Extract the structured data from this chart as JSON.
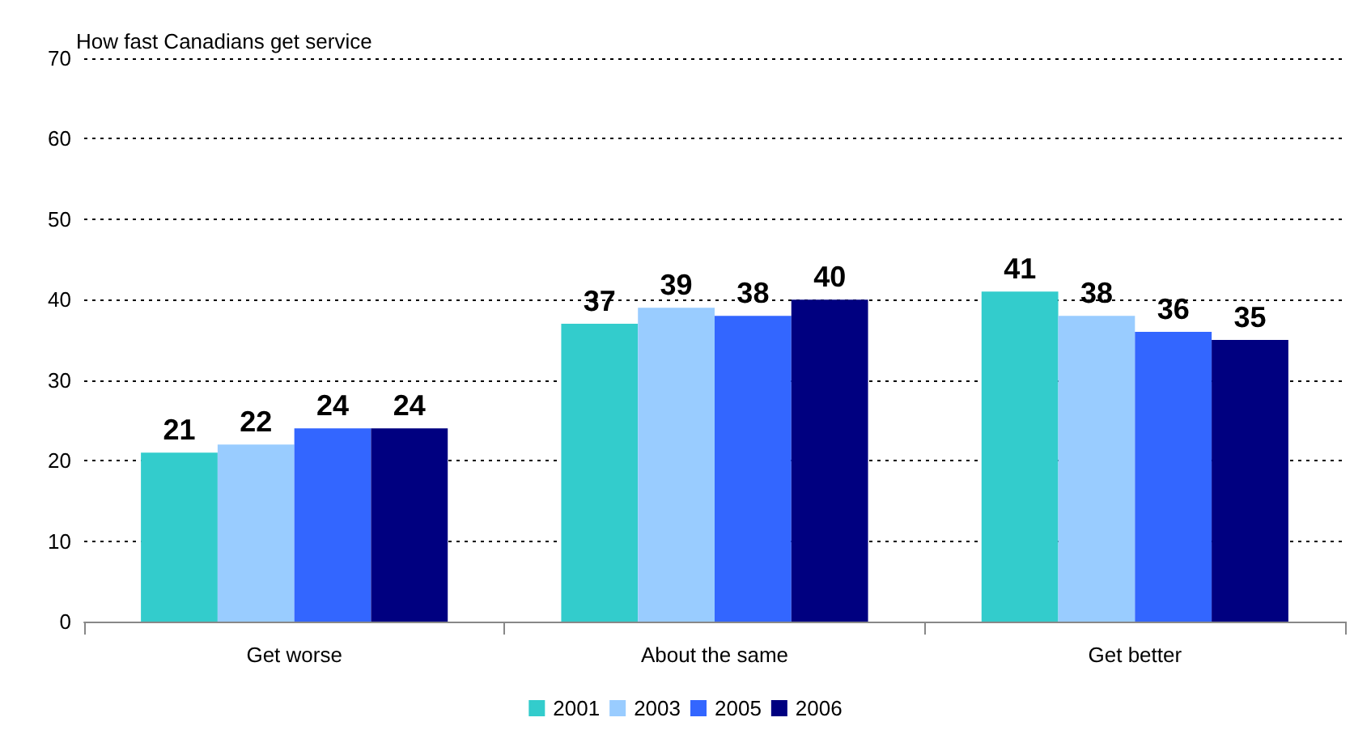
{
  "chart_data": {
    "type": "bar",
    "title": "How fast Canadians get service",
    "categories": [
      "Get worse",
      "About the same",
      "Get better"
    ],
    "series": [
      {
        "name": "2001",
        "color": "#33cccc",
        "values": [
          21,
          37,
          41
        ]
      },
      {
        "name": "2003",
        "color": "#99ccff",
        "values": [
          22,
          39,
          38
        ]
      },
      {
        "name": "2005",
        "color": "#3366ff",
        "values": [
          24,
          38,
          36
        ]
      },
      {
        "name": "2006",
        "color": "#000080",
        "values": [
          24,
          40,
          35
        ]
      }
    ],
    "ylim": [
      0,
      70
    ],
    "yticks": [
      0,
      10,
      20,
      30,
      40,
      50,
      60,
      70
    ],
    "grid": "y",
    "legend": "bottom",
    "data_labels": true
  }
}
